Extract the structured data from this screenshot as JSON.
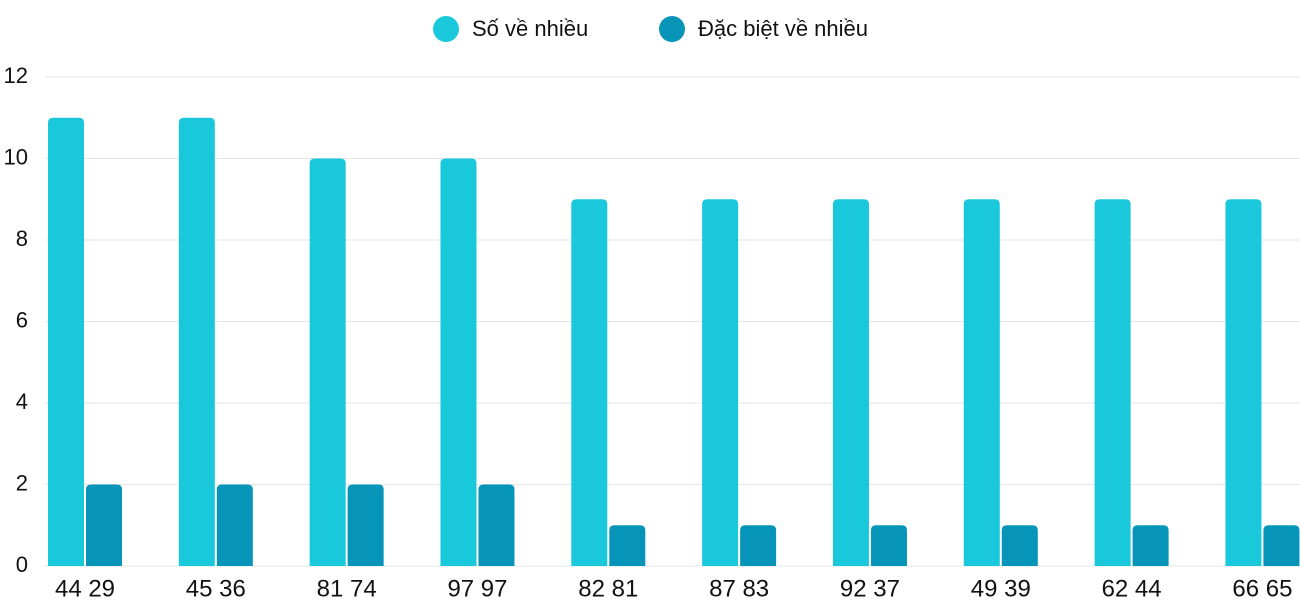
{
  "chart_data": {
    "type": "bar",
    "categories": [
      "44 29",
      "45 36",
      "81 74",
      "97 97",
      "82 81",
      "87 83",
      "92 37",
      "49 39",
      "62 44",
      "66 65"
    ],
    "series": [
      {
        "name": "Số về nhiều",
        "color": "#1ac8db",
        "values": [
          11,
          11,
          10,
          10,
          9,
          9,
          9,
          9,
          9,
          9
        ]
      },
      {
        "name": "Đặc biệt về nhiều",
        "color": "#0695b8",
        "values": [
          2,
          2,
          2,
          2,
          1,
          1,
          1,
          1,
          1,
          1
        ]
      }
    ],
    "ylim": [
      0,
      12
    ],
    "yticks": [
      0,
      2,
      4,
      6,
      8,
      10,
      12
    ],
    "grid": true,
    "legend": "top"
  }
}
